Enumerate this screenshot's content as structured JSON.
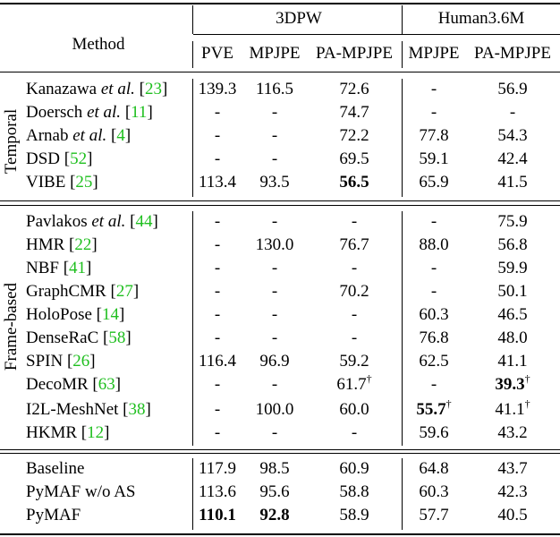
{
  "headers": {
    "method": "Method",
    "group_3dpw": "3DPW",
    "group_h36m": "Human3.6M",
    "cols": [
      "PVE",
      "MPJPE",
      "PA-MPJPE",
      "MPJPE",
      "PA-MPJPE"
    ]
  },
  "groups": {
    "temporal": "Temporal",
    "frame": "Frame-based"
  },
  "rows": [
    {
      "name": "Kanazawa",
      "etal": " et al.",
      "ref": "23",
      "v": [
        "139.3",
        "116.5",
        "72.6",
        "-",
        "56.9"
      ]
    },
    {
      "name": "Doersch",
      "etal": " et al.",
      "ref": "11",
      "v": [
        "-",
        "-",
        "74.7",
        "-",
        "-"
      ]
    },
    {
      "name": "Arnab",
      "etal": " et al.",
      "ref": "4",
      "v": [
        "-",
        "-",
        "72.2",
        "77.8",
        "54.3"
      ]
    },
    {
      "name": "DSD",
      "etal": "",
      "ref": "52",
      "v": [
        "-",
        "-",
        "69.5",
        "59.1",
        "42.4"
      ]
    },
    {
      "name": "VIBE",
      "etal": "",
      "ref": "25",
      "v": [
        "113.4",
        "93.5",
        "56.5",
        "65.9",
        "41.5"
      ]
    },
    {
      "name": "Pavlakos",
      "etal": " et al.",
      "ref": "44",
      "v": [
        "-",
        "-",
        "-",
        "-",
        "75.9"
      ]
    },
    {
      "name": "HMR",
      "etal": "",
      "ref": "22",
      "v": [
        "-",
        "130.0",
        "76.7",
        "88.0",
        "56.8"
      ]
    },
    {
      "name": "NBF",
      "etal": "",
      "ref": "41",
      "v": [
        "-",
        "-",
        "-",
        "-",
        "59.9"
      ]
    },
    {
      "name": "GraphCMR",
      "etal": "",
      "ref": "27",
      "v": [
        "-",
        "-",
        "70.2",
        "-",
        "50.1"
      ]
    },
    {
      "name": "HoloPose",
      "etal": "",
      "ref": "14",
      "v": [
        "-",
        "-",
        "-",
        "60.3",
        "46.5"
      ]
    },
    {
      "name": "DenseRaC",
      "etal": "",
      "ref": "58",
      "v": [
        "-",
        "-",
        "-",
        "76.8",
        "48.0"
      ]
    },
    {
      "name": "SPIN",
      "etal": "",
      "ref": "26",
      "v": [
        "116.4",
        "96.9",
        "59.2",
        "62.5",
        "41.1"
      ]
    },
    {
      "name": "DecoMR",
      "etal": "",
      "ref": "63",
      "v": [
        "-",
        "-",
        "61.7",
        "-",
        "39.3"
      ]
    },
    {
      "name": "I2L-MeshNet",
      "etal": "",
      "ref": "38",
      "v": [
        "-",
        "100.0",
        "60.0",
        "55.7",
        "41.1"
      ]
    },
    {
      "name": "HKMR",
      "etal": "",
      "ref": "12",
      "v": [
        "-",
        "-",
        "-",
        "59.6",
        "43.2"
      ]
    },
    {
      "name": "Baseline",
      "etal": "",
      "ref": "",
      "v": [
        "117.9",
        "98.5",
        "60.9",
        "64.8",
        "43.7"
      ]
    },
    {
      "name": "PyMAF w/o AS",
      "etal": "",
      "ref": "",
      "v": [
        "113.6",
        "95.6",
        "58.8",
        "60.3",
        "42.3"
      ]
    },
    {
      "name": "PyMAF",
      "etal": "",
      "ref": "",
      "v": [
        "110.1",
        "92.8",
        "58.9",
        "57.7",
        "40.5"
      ]
    }
  ],
  "bold_cells": [
    [
      4,
      2
    ],
    [
      12,
      4
    ],
    [
      13,
      3
    ],
    [
      17,
      0
    ],
    [
      17,
      1
    ]
  ],
  "dagger_cells": [
    [
      12,
      2
    ],
    [
      12,
      4
    ],
    [
      13,
      3
    ],
    [
      13,
      4
    ]
  ],
  "dagger": "†",
  "ref_open": " [",
  "ref_close": "]"
}
